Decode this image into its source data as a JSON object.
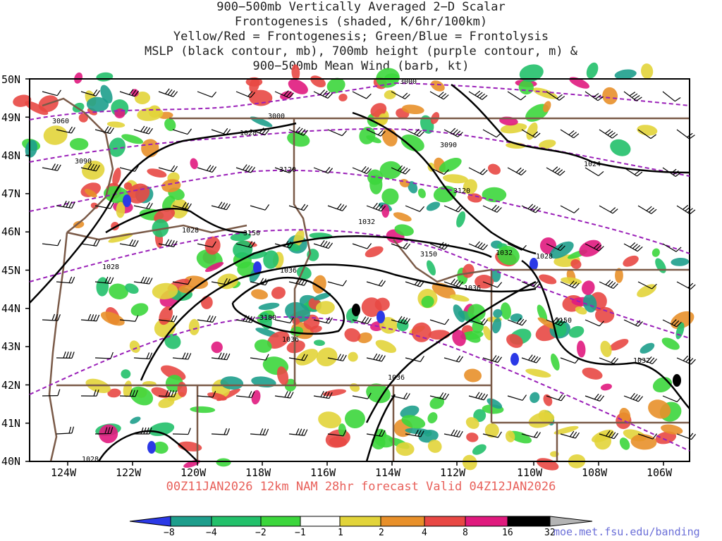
{
  "title_lines": [
    "900−500mb Vertically Averaged 2−D Scalar",
    "Frontogenesis (shaded, K/6hr/100km)",
    "Yellow/Red = Frontogenesis;  Green/Blue = Frontolysis",
    "MSLP (black contour, mb), 700mb height (purple contour, m) &",
    "900−500mb Mean Wind (barb, kt)"
  ],
  "valid_line": "00Z11JAN2026 12km NAM 28hr forecast Valid 04Z12JAN2026",
  "credit": "moe.met.fsu.edu/banding",
  "axes": {
    "lat_labels": [
      "50N",
      "49N",
      "48N",
      "47N",
      "46N",
      "45N",
      "44N",
      "43N",
      "42N",
      "41N",
      "40N"
    ],
    "lon_labels": [
      "124W",
      "122W",
      "120W",
      "118W",
      "116W",
      "114W",
      "112W",
      "110W",
      "108W",
      "106W"
    ]
  },
  "colorbar": {
    "labels": [
      "−8",
      "−4",
      "−2",
      "−1",
      "1",
      "2",
      "4",
      "8",
      "16",
      "32"
    ],
    "colors": [
      "#2b39e6",
      "#1e9e8c",
      "#22c06a",
      "#3cd63c",
      "#ffffff",
      "#e2d43a",
      "#e8902a",
      "#e84844",
      "#e01a7e",
      "#000000",
      "#b4b4b4"
    ]
  },
  "mslp_labels": [
    "1028",
    "1028",
    "1028",
    "1032",
    "1032",
    "1028",
    "1036",
    "1036",
    "1036",
    "1036",
    "1024",
    "1032",
    "1028"
  ],
  "height_labels": [
    "3060",
    "3090",
    "3000",
    "3120",
    "3090",
    "3120",
    "3150",
    "3150",
    "3180",
    "3150",
    "3000"
  ],
  "colors": {
    "mslp": "#000000",
    "height": "#9a1fb8",
    "borders": "#7a5a48",
    "valid_text": "#e8605a",
    "credit_text": "#6b6fd8"
  }
}
